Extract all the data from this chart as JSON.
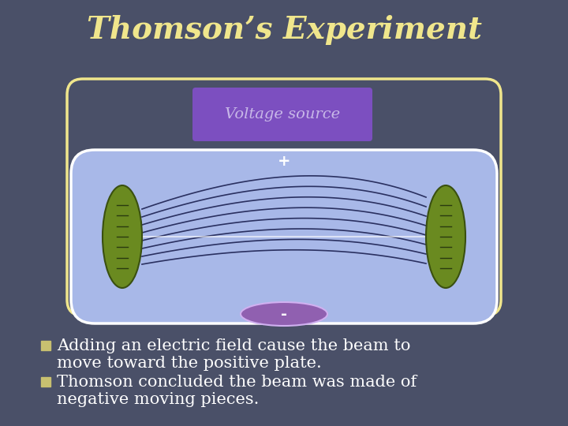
{
  "title": "Thomson’s Experiment",
  "title_color": "#f0e68c",
  "title_fontsize": 28,
  "bg_color": "#4a5068",
  "voltage_box_color": "#7c4fc0",
  "voltage_box_text": "Voltage source",
  "voltage_box_text_color": "#c8b8e8",
  "tube_fill_color": "#a8b8e8",
  "tube_border_color": "#ffffff",
  "circuit_color": "#f0e68c",
  "plus_ellipse_color": "#9060b0",
  "minus_ellipse_color": "#9060b0",
  "plus_text": "+",
  "minus_text": "-",
  "terminal_text_color": "#ffffff",
  "electrode_color": "#6a8a20",
  "beam_color": "#2a3060",
  "bullet_color": "#c8c070",
  "text_color": "#ffffff",
  "text1_line1": "Adding an electric field cause the beam to",
  "text1_line2": "move toward the positive plate.",
  "text2_line1": "Thomson concluded the beam was made of",
  "text2_line2": "negative moving pieces.",
  "text_fontsize": 15
}
